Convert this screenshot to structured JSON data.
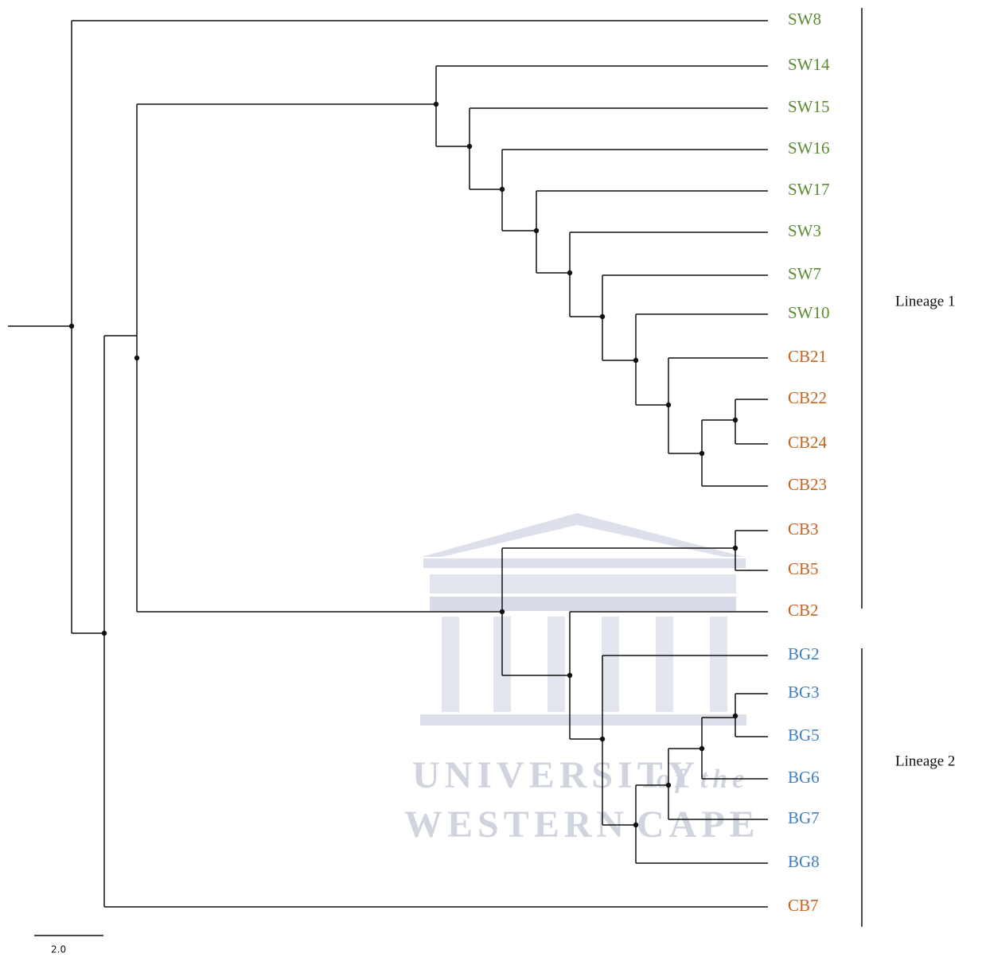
{
  "leaves": [
    {
      "label": "SW8",
      "color": "#5b8c32"
    },
    {
      "label": "SW14",
      "color": "#5b8c32"
    },
    {
      "label": "SW15",
      "color": "#5b8c32"
    },
    {
      "label": "SW16",
      "color": "#5b8c32"
    },
    {
      "label": "SW17",
      "color": "#5b8c32"
    },
    {
      "label": "SW3",
      "color": "#5b8c32"
    },
    {
      "label": "SW7",
      "color": "#5b8c32"
    },
    {
      "label": "SW10",
      "color": "#5b8c32"
    },
    {
      "label": "CB21",
      "color": "#c8621e"
    },
    {
      "label": "CB22",
      "color": "#c8621e"
    },
    {
      "label": "CB24",
      "color": "#c8621e"
    },
    {
      "label": "CB23",
      "color": "#c8621e"
    },
    {
      "label": "CB3",
      "color": "#c8621e"
    },
    {
      "label": "CB5",
      "color": "#c8621e"
    },
    {
      "label": "CB2",
      "color": "#c8621e"
    },
    {
      "label": "BG2",
      "color": "#3d80c2"
    },
    {
      "label": "BG3",
      "color": "#3d80c2"
    },
    {
      "label": "BG5",
      "color": "#3d80c2"
    },
    {
      "label": "BG6",
      "color": "#3d80c2"
    },
    {
      "label": "BG7",
      "color": "#3d80c2"
    },
    {
      "label": "BG8",
      "color": "#3d80c2"
    },
    {
      "label": "CB7",
      "color": "#c8621e"
    }
  ],
  "lineages": [
    "Lineage 1",
    "Lineage 2"
  ],
  "scale_label": "2.0",
  "watermark": [
    "UNIVERSITY",
    "of the",
    "WESTERN",
    "CAPE"
  ]
}
